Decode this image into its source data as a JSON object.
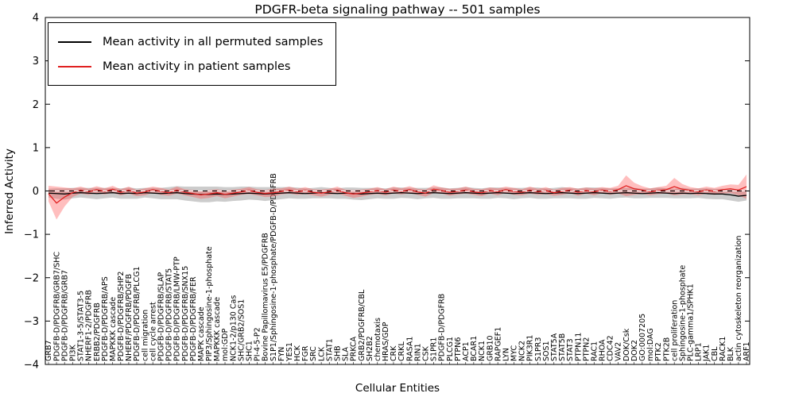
{
  "figure": {
    "background": "#ffffff"
  },
  "chart_data": {
    "type": "line",
    "title": "PDGFR-beta signaling pathway -- 501 samples",
    "xlabel": "Cellular Entities",
    "ylabel": "Inferred Activity",
    "ylim": [
      -4,
      4
    ],
    "yticks": [
      -4,
      -3,
      -2,
      -1,
      0,
      1,
      2,
      3,
      4
    ],
    "ytick_labels": [
      "−4",
      "−3",
      "−2",
      "−1",
      "0",
      "1",
      "2",
      "3",
      "4"
    ],
    "grid": false,
    "legend_position": "upper left",
    "categories": [
      "GRB7",
      "PDGFB-D/PDGFRB/GRB7/SHC",
      "PDGFB-D/PDGFRB/GRB7",
      "PI3K",
      "STAT1-3-5/STAT3-5",
      "NHERF1-2/PDGFRB",
      "ERBB2/PDGFRB",
      "PDGFB-D/PDGFRB/APS",
      "MAPKKK cascade",
      "PDGFB-D/PDGFRB/SHP2",
      "NHERF/PDGFRB/PDGFB",
      "PDGFB-D/PDGFRB/PLCG1",
      "cell migration",
      "cell cycle arrest",
      "PDGFB-D/PDGFRB/SLAP",
      "PDGFB-D/PDGFRB/STAT5",
      "PDGFB-D/PDGFRB/LMW-PTP",
      "PDGFB-D/PDGFRB/SNX15",
      "PDGFB-D/PDGFRB/FER",
      "MAPK cascade",
      "PIP3/Sphingosine-1-phosphate",
      "MAPKKK cascade",
      "mol:GDP",
      "NCK1-2/p130 Cas",
      "SHC/GRB2/SOS1",
      "SHC1",
      "PI-4-5-P2",
      "Bovine Papillomavirus E5/PDGFRB",
      "S1P1/Sphingosine-1-phosphate/PDGFB-D/PDGFRB",
      "FYN",
      "YES1",
      "HCK",
      "FGR",
      "SRC",
      "LCK",
      "STAT1",
      "SHB",
      "SLA",
      "PRKCA",
      "GRB2/PDGFRB/CBL",
      "SH2B2",
      "chemotaxis",
      "HRAS/GDP",
      "CRK",
      "CRKL",
      "RASA1",
      "RIN1",
      "CSK",
      "S1PR1",
      "PDGFB-D/PDGFRB",
      "PLCG1",
      "PTPN6",
      "ACP1",
      "BCAR1",
      "NCK1",
      "GRB10",
      "RAPGEF1",
      "LYN",
      "MYC",
      "NCK2",
      "PIK3R1",
      "S1PR3",
      "SOS1",
      "STAT5A",
      "STAT5B",
      "STAT3",
      "PTPN11",
      "PTPN2",
      "RAC1",
      "RHOA",
      "CDC42",
      "VAV2",
      "DOK/Csk",
      "DOK2",
      "GO:0007205",
      "mol:DAG",
      "PTK2",
      "PTK2B",
      "cell proliferation",
      "Sphingosine-1-phosphate",
      "PLC-gamma1/SPHK1",
      "LRP1",
      "JAK1",
      "CBL",
      "RACK1",
      "BLK",
      "actin cytoskeleton reorganization",
      "ARF1"
    ],
    "series": [
      {
        "id": "permuted",
        "name": "Mean activity in all permuted samples",
        "color": "#000000",
        "band_color": "rgba(120,120,120,0.38)",
        "values": [
          -0.05,
          -0.06,
          -0.07,
          -0.05,
          -0.04,
          -0.05,
          -0.06,
          -0.05,
          -0.04,
          -0.06,
          -0.05,
          -0.06,
          -0.04,
          -0.05,
          -0.06,
          -0.05,
          -0.04,
          -0.06,
          -0.07,
          -0.08,
          -0.08,
          -0.07,
          -0.08,
          -0.07,
          -0.06,
          -0.05,
          -0.06,
          -0.07,
          -0.06,
          -0.05,
          -0.04,
          -0.05,
          -0.06,
          -0.05,
          -0.04,
          -0.05,
          -0.06,
          -0.05,
          -0.06,
          -0.07,
          -0.06,
          -0.05,
          -0.06,
          -0.05,
          -0.04,
          -0.05,
          -0.06,
          -0.05,
          -0.04,
          -0.05,
          -0.06,
          -0.05,
          -0.04,
          -0.05,
          -0.06,
          -0.05,
          -0.04,
          -0.05,
          -0.06,
          -0.05,
          -0.04,
          -0.05,
          -0.06,
          -0.05,
          -0.04,
          -0.05,
          -0.06,
          -0.05,
          -0.04,
          -0.05,
          -0.06,
          -0.05,
          -0.04,
          -0.05,
          -0.06,
          -0.05,
          -0.04,
          -0.05,
          -0.06,
          -0.05,
          -0.06,
          -0.05,
          -0.06,
          -0.07,
          -0.07,
          -0.09,
          -0.12,
          -0.1
        ],
        "band_halfwidth": [
          0.1,
          0.12,
          0.13,
          0.12,
          0.11,
          0.12,
          0.13,
          0.12,
          0.11,
          0.12,
          0.13,
          0.12,
          0.11,
          0.12,
          0.13,
          0.14,
          0.15,
          0.16,
          0.17,
          0.18,
          0.18,
          0.17,
          0.17,
          0.16,
          0.16,
          0.15,
          0.15,
          0.16,
          0.15,
          0.14,
          0.13,
          0.13,
          0.12,
          0.12,
          0.13,
          0.12,
          0.12,
          0.13,
          0.14,
          0.14,
          0.13,
          0.12,
          0.12,
          0.13,
          0.12,
          0.12,
          0.13,
          0.12,
          0.12,
          0.13,
          0.12,
          0.12,
          0.13,
          0.12,
          0.12,
          0.13,
          0.12,
          0.12,
          0.13,
          0.12,
          0.12,
          0.13,
          0.12,
          0.12,
          0.13,
          0.12,
          0.12,
          0.13,
          0.12,
          0.12,
          0.12,
          0.11,
          0.11,
          0.12,
          0.11,
          0.11,
          0.12,
          0.11,
          0.11,
          0.12,
          0.11,
          0.11,
          0.12,
          0.12,
          0.12,
          0.13,
          0.13,
          0.12
        ]
      },
      {
        "id": "patient",
        "name": "Mean activity in patient samples",
        "color": "#e02020",
        "band_color": "rgba(255,70,70,0.35)",
        "values": [
          -0.06,
          -0.28,
          -0.14,
          -0.04,
          0.02,
          -0.02,
          0.03,
          -0.01,
          0.04,
          -0.03,
          0.02,
          -0.05,
          -0.02,
          0.03,
          -0.01,
          -0.04,
          0.02,
          -0.03,
          -0.06,
          -0.09,
          -0.07,
          -0.04,
          -0.08,
          -0.05,
          -0.02,
          0.01,
          -0.03,
          -0.06,
          -0.04,
          -0.01,
          0.02,
          -0.02,
          0.01,
          -0.03,
          -0.05,
          -0.02,
          0.02,
          -0.04,
          -0.07,
          -0.05,
          -0.02,
          0.01,
          -0.03,
          0.02,
          -0.01,
          0.03,
          -0.02,
          -0.05,
          0.04,
          0.01,
          -0.03,
          -0.01,
          0.02,
          -0.02,
          -0.04,
          0.01,
          -0.02,
          0.03,
          -0.01,
          -0.03,
          0.02,
          -0.02,
          0.01,
          -0.04,
          -0.01,
          0.02,
          -0.03,
          0.01,
          -0.02,
          0.02,
          -0.01,
          0.03,
          0.12,
          0.05,
          0.02,
          -0.02,
          0.01,
          0.03,
          0.1,
          0.04,
          0.01,
          -0.02,
          0.02,
          -0.01,
          0.03,
          0.05,
          0.02,
          0.1
        ],
        "band_halfwidth": [
          0.18,
          0.38,
          0.22,
          0.1,
          0.08,
          0.07,
          0.08,
          0.07,
          0.08,
          0.07,
          0.08,
          0.07,
          0.08,
          0.07,
          0.08,
          0.07,
          0.08,
          0.07,
          0.08,
          0.09,
          0.09,
          0.08,
          0.09,
          0.08,
          0.07,
          0.08,
          0.07,
          0.08,
          0.09,
          0.07,
          0.08,
          0.07,
          0.08,
          0.07,
          0.08,
          0.07,
          0.08,
          0.07,
          0.09,
          0.08,
          0.07,
          0.08,
          0.07,
          0.08,
          0.07,
          0.08,
          0.07,
          0.08,
          0.09,
          0.07,
          0.08,
          0.07,
          0.08,
          0.07,
          0.08,
          0.07,
          0.08,
          0.07,
          0.08,
          0.07,
          0.08,
          0.07,
          0.08,
          0.07,
          0.08,
          0.07,
          0.08,
          0.07,
          0.08,
          0.07,
          0.08,
          0.09,
          0.24,
          0.14,
          0.09,
          0.08,
          0.08,
          0.09,
          0.2,
          0.12,
          0.08,
          0.08,
          0.08,
          0.08,
          0.09,
          0.1,
          0.12,
          0.28
        ]
      }
    ],
    "zero_line_color": "#000000",
    "zero_line_overlay_dash_color": "#ffffff"
  }
}
